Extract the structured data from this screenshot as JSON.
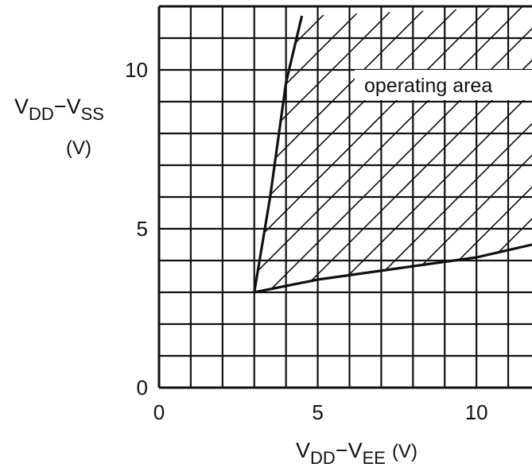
{
  "chart_data": {
    "type": "area",
    "title": "",
    "xlabel": {
      "main": "V",
      "sub1": "DD",
      "dash": "−V",
      "sub2": "EE",
      "unit": "(V)"
    },
    "ylabel": {
      "main": "V",
      "sub1": "DD",
      "dash": "−V",
      "sub2": "SS",
      "unit": "(V)"
    },
    "xlim": [
      0,
      11.75
    ],
    "ylim": [
      0,
      12
    ],
    "x_ticks": [
      {
        "value": 0,
        "label": "0"
      },
      {
        "value": 5,
        "label": "5"
      },
      {
        "value": 10,
        "label": "10"
      }
    ],
    "y_ticks": [
      {
        "value": 0,
        "label": "0"
      },
      {
        "value": 5,
        "label": "5"
      },
      {
        "value": 10,
        "label": "10"
      }
    ],
    "grid": true,
    "grid_step": 1,
    "hatch": "diagonal",
    "region_label": "operating area",
    "series": [
      {
        "values": [
          {
            "x": 3.0,
            "y": 3.0
          },
          {
            "x": 3.5,
            "y": 6.0
          },
          {
            "x": 4.0,
            "y": 9.6
          },
          {
            "x": 4.5,
            "y": 11.7
          }
        ]
      },
      {
        "values": [
          {
            "x": 3.0,
            "y": 3.0
          },
          {
            "x": 5.0,
            "y": 3.4
          },
          {
            "x": 7.5,
            "y": 3.75
          },
          {
            "x": 10.0,
            "y": 4.1
          },
          {
            "x": 11.75,
            "y": 4.5
          }
        ]
      }
    ]
  }
}
